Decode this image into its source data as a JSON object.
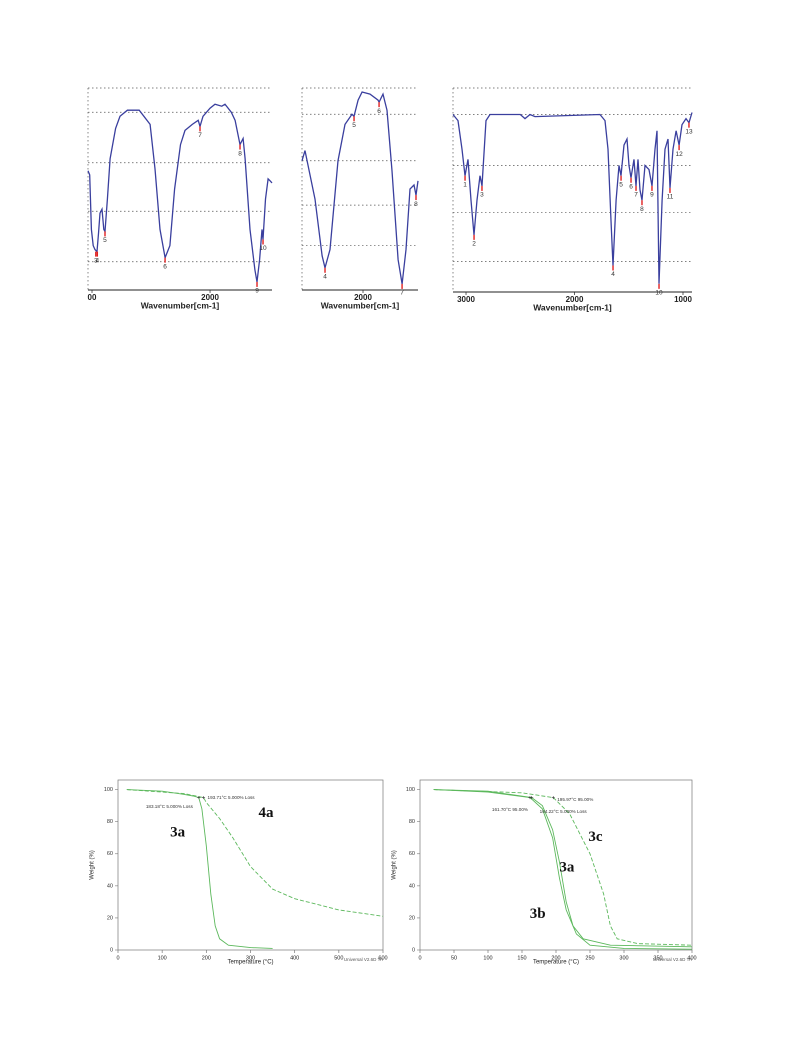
{
  "chart_data": [
    {
      "type": "line",
      "xlabel": "Wavenumber[cm-1]",
      "xlim": [
        3034,
        1475
      ],
      "xticks": [
        {
          "value": 3000,
          "label": "00"
        },
        2000
      ],
      "ylim": [
        0,
        100
      ],
      "grid_y": [
        100,
        88,
        63,
        39,
        14
      ],
      "series": [
        {
          "color": "#3a3f9e",
          "x": [
            3034,
            3020,
            3005,
            2990,
            2975,
            2958,
            2945,
            2932,
            2915,
            2900,
            2890,
            2870,
            2847,
            2800,
            2763,
            2700,
            2600,
            2508,
            2466,
            2424,
            2381,
            2340,
            2300,
            2250,
            2212,
            2150,
            2100,
            2085,
            2060,
            2000,
            1958,
            1900,
            1873,
            1820,
            1788,
            1746,
            1720,
            1703,
            1661,
            1620,
            1602,
            1580,
            1560,
            1551,
            1530,
            1508,
            1490,
            1475
          ],
          "values": [
            59,
            57,
            30,
            22,
            20,
            19,
            28,
            38,
            40,
            30,
            29,
            45,
            65,
            80,
            86,
            89,
            89,
            82,
            60,
            30,
            16,
            22,
            50,
            72,
            79,
            82,
            84,
            81,
            86,
            90,
            92,
            91,
            92,
            88,
            84,
            72,
            75,
            65,
            30,
            10,
            4,
            15,
            30,
            25,
            45,
            55,
            54,
            53
          ]
        }
      ],
      "peaks": [
        {
          "label": "3",
          "x": 2968,
          "y": 19
        },
        {
          "label": "4",
          "x": 2955,
          "y": 19
        },
        {
          "label": "5",
          "x": 2890,
          "y": 29
        },
        {
          "label": "6",
          "x": 2381,
          "y": 16
        },
        {
          "label": "7",
          "x": 2085,
          "y": 81
        },
        {
          "label": "8",
          "x": 1746,
          "y": 72
        },
        {
          "label": "9",
          "x": 1602,
          "y": 4
        },
        {
          "label": "10",
          "x": 1551,
          "y": 25
        }
      ]
    },
    {
      "type": "line",
      "xlabel": "Wavenumber[cm-1]",
      "xlim": [
        2517,
        1534
      ],
      "xticks": [
        2000
      ],
      "ylim": [
        0,
        100
      ],
      "grid_y": [
        100,
        87,
        64,
        42,
        22
      ],
      "series": [
        {
          "color": "#3a3f9e",
          "x": [
            2517,
            2492,
            2407,
            2347,
            2322,
            2280,
            2212,
            2153,
            2093,
            2076,
            2042,
            2008,
            1941,
            1873,
            1864,
            1831,
            1797,
            1754,
            1703,
            1669,
            1636,
            1602,
            1568,
            1551,
            1534
          ],
          "values": [
            64,
            69,
            45,
            17,
            11,
            20,
            64,
            82,
            87,
            86,
            94,
            98,
            97,
            94,
            93,
            97,
            89,
            59,
            15,
            3,
            20,
            50,
            52,
            47,
            54
          ]
        }
      ],
      "peaks": [
        {
          "label": "4",
          "x": 2322,
          "y": 11
        },
        {
          "label": "5",
          "x": 2076,
          "y": 86
        },
        {
          "label": "6",
          "x": 1864,
          "y": 93
        },
        {
          "label": "7",
          "x": 1669,
          "y": 3
        },
        {
          "label": "8",
          "x": 1551,
          "y": 47
        }
      ]
    },
    {
      "type": "line",
      "xlabel": "Wavenumber[cm-1]",
      "xlim": [
        3120,
        917
      ],
      "xticks": [
        3000,
        2000,
        1000
      ],
      "ylim": [
        0,
        100
      ],
      "grid_y": [
        100,
        87,
        62,
        39,
        15
      ],
      "series": [
        {
          "color": "#3a3f9e",
          "x": [
            3120,
            3074,
            3037,
            3009,
            2982,
            2954,
            2926,
            2899,
            2871,
            2853,
            2816,
            2779,
            2500,
            2456,
            2410,
            2364,
            1765,
            1719,
            1691,
            1664,
            1645,
            1617,
            1590,
            1571,
            1544,
            1516,
            1498,
            1479,
            1452,
            1433,
            1415,
            1396,
            1378,
            1350,
            1313,
            1286,
            1258,
            1240,
            1221,
            1193,
            1166,
            1138,
            1120,
            1092,
            1064,
            1036,
            1009,
            972,
            945,
            917
          ],
          "values": [
            87,
            84,
            70,
            57,
            65,
            45,
            28,
            45,
            57,
            52,
            84,
            87,
            87,
            85,
            87,
            86,
            87,
            84,
            70,
            35,
            13,
            45,
            62,
            57,
            72,
            75,
            62,
            56,
            65,
            52,
            65,
            50,
            45,
            62,
            60,
            52,
            70,
            79,
            4,
            45,
            70,
            75,
            51,
            70,
            79,
            72,
            82,
            85,
            83,
            88
          ]
        }
      ],
      "peaks": [
        {
          "label": "1",
          "x": 3009,
          "y": 57
        },
        {
          "label": "2",
          "x": 2926,
          "y": 28
        },
        {
          "label": "3",
          "x": 2853,
          "y": 52
        },
        {
          "label": "4",
          "x": 1645,
          "y": 13
        },
        {
          "label": "5",
          "x": 1571,
          "y": 57
        },
        {
          "label": "6",
          "x": 1479,
          "y": 56
        },
        {
          "label": "7",
          "x": 1433,
          "y": 52
        },
        {
          "label": "8",
          "x": 1378,
          "y": 45
        },
        {
          "label": "9",
          "x": 1286,
          "y": 52
        },
        {
          "label": "10",
          "x": 1221,
          "y": 4
        },
        {
          "label": "11",
          "x": 1120,
          "y": 51
        },
        {
          "label": "12",
          "x": 1036,
          "y": 72
        },
        {
          "label": "13",
          "x": 945,
          "y": 83
        }
      ]
    },
    {
      "type": "line",
      "xlabel": "Temperature (°C)",
      "ylabel": "Weight (%)",
      "footer": "Universal V2.6D TA",
      "xlim": [
        0,
        600
      ],
      "xticks": [
        0,
        100,
        200,
        300,
        400,
        500,
        600
      ],
      "ylim": [
        0,
        106
      ],
      "yticks": [
        0,
        20,
        40,
        60,
        80,
        100
      ],
      "series": [
        {
          "name": "3a",
          "color": "#5cb85c",
          "dashed": false,
          "label_at": [
            135,
            73
          ],
          "x": [
            20,
            100,
            150,
            170,
            183,
            190,
            200,
            210,
            220,
            230,
            250,
            300,
            350
          ],
          "values": [
            100,
            99,
            97,
            96,
            95,
            88,
            65,
            35,
            15,
            7,
            3,
            1.5,
            1
          ]
        },
        {
          "name": "4a",
          "color": "#5cb85c",
          "dashed": false,
          "dash": true,
          "label_at": [
            335,
            85
          ],
          "x": [
            20,
            150,
            193.71,
            200,
            230,
            260,
            300,
            350,
            400,
            500,
            600
          ],
          "values": [
            100,
            97.5,
            95,
            92,
            82,
            70,
            52,
            38,
            32,
            25,
            21
          ]
        }
      ],
      "annotations": [
        {
          "text": "183.18°C 5.000% Loss",
          "x": 183.18,
          "y": 95
        },
        {
          "text": "193.71°C 5.000% Loss",
          "x": 193.71,
          "y": 95
        }
      ]
    },
    {
      "type": "line",
      "xlabel": "Temperature (°C)",
      "ylabel": "Weight (%)",
      "footer": "Universal V2.6D TA",
      "xlim": [
        0,
        400
      ],
      "xticks": [
        0,
        50,
        100,
        150,
        200,
        250,
        300,
        350,
        400
      ],
      "ylim": [
        0,
        106
      ],
      "yticks": [
        0,
        20,
        40,
        60,
        80,
        100
      ],
      "series": [
        {
          "name": "3c",
          "color": "#5cb85c",
          "dash": true,
          "label_at": [
            258,
            70
          ],
          "x": [
            20,
            150,
            195.97,
            220,
            250,
            270,
            280,
            290,
            320,
            400
          ],
          "values": [
            100,
            98,
            95,
            85,
            60,
            35,
            15,
            7,
            4,
            3
          ]
        },
        {
          "name": "3a",
          "color": "#5cb85c",
          "dash": false,
          "label_at": [
            216,
            51
          ],
          "x": [
            20,
            100,
            164.22,
            180,
            195,
            205,
            215,
            225,
            240,
            280,
            400
          ],
          "values": [
            100,
            99,
            95,
            90,
            75,
            55,
            30,
            15,
            7,
            3,
            2
          ]
        },
        {
          "name": "3b",
          "color": "#5cb85c",
          "dash": false,
          "label_at": [
            173,
            22
          ],
          "x": [
            20,
            100,
            161.7,
            180,
            195,
            205,
            215,
            230,
            250,
            300,
            400
          ],
          "values": [
            100,
            98.5,
            95,
            88,
            70,
            45,
            25,
            10,
            3,
            1,
            0.5
          ]
        }
      ],
      "annotations": [
        {
          "text": "195.97°C 95.00%",
          "x": 195.97,
          "y": 95
        },
        {
          "text": "161.70°C 95.00%",
          "x": 161.7,
          "y": 95
        },
        {
          "text": "164.22°C 5.000% Loss",
          "x": 164.22,
          "y": 95
        }
      ]
    }
  ]
}
